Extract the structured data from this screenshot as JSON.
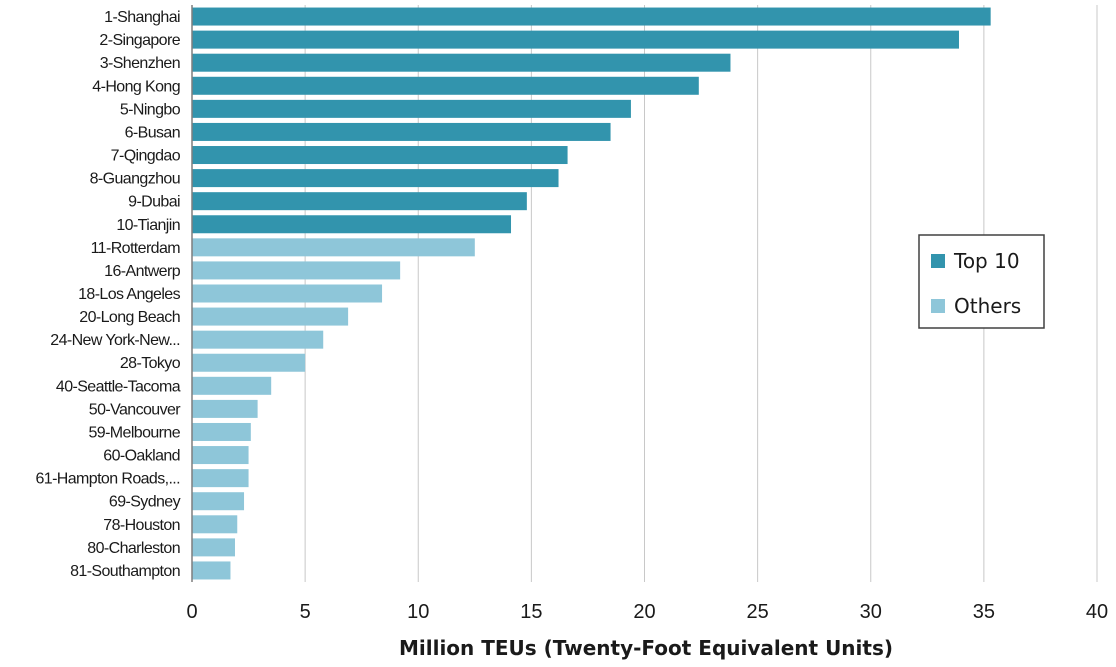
{
  "chart_data": {
    "type": "bar",
    "orientation": "horizontal",
    "xlabel": "Million TEUs (Twenty-Foot Equivalent Units)",
    "xlim": [
      0,
      40
    ],
    "xticks": [
      0,
      5,
      10,
      15,
      20,
      25,
      30,
      35,
      40
    ],
    "grid": "vertical",
    "legend_position": "right",
    "series": [
      {
        "name": "Top 10",
        "color": "#3294ad"
      },
      {
        "name": "Others",
        "color": "#8ec6d9"
      }
    ],
    "categories": [
      "1-Shanghai",
      "2-Singapore",
      "3-Shenzhen",
      "4-Hong Kong",
      "5-Ningbo",
      "6-Busan",
      "7-Qingdao",
      "8-Guangzhou",
      "9-Dubai",
      "10-Tianjin",
      "11-Rotterdam",
      "16-Antwerp",
      "18-Los Angeles",
      "20-Long Beach",
      "24-New York-New...",
      "28-Tokyo",
      "40-Seattle-Tacoma",
      "50-Vancouver",
      "59-Melbourne",
      "60-Oakland",
      "61-Hampton Roads,...",
      "69-Sydney",
      "78-Houston",
      "80-Charleston",
      "81-Southampton"
    ],
    "values": [
      35.3,
      33.9,
      23.8,
      22.4,
      19.4,
      18.5,
      16.6,
      16.2,
      14.8,
      14.1,
      12.5,
      9.2,
      8.4,
      6.9,
      5.8,
      5.0,
      3.5,
      2.9,
      2.6,
      2.5,
      2.5,
      2.3,
      2.0,
      1.9,
      1.7
    ],
    "groups": [
      "Top 10",
      "Top 10",
      "Top 10",
      "Top 10",
      "Top 10",
      "Top 10",
      "Top 10",
      "Top 10",
      "Top 10",
      "Top 10",
      "Others",
      "Others",
      "Others",
      "Others",
      "Others",
      "Others",
      "Others",
      "Others",
      "Others",
      "Others",
      "Others",
      "Others",
      "Others",
      "Others",
      "Others"
    ]
  }
}
